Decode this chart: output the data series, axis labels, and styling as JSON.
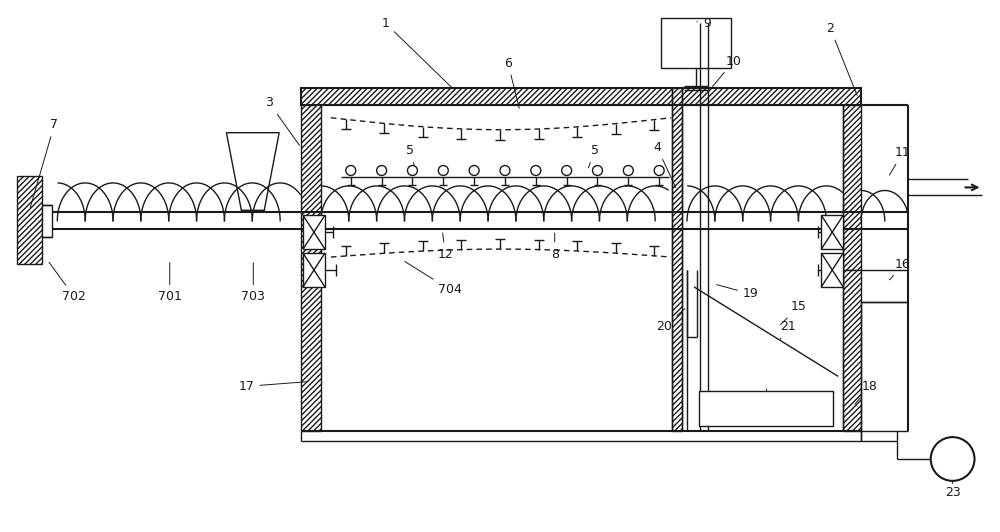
{
  "bg_color": "#ffffff",
  "line_color": "#1a1a1a",
  "fig_width": 10.0,
  "fig_height": 5.32,
  "label_fs": 9.0
}
